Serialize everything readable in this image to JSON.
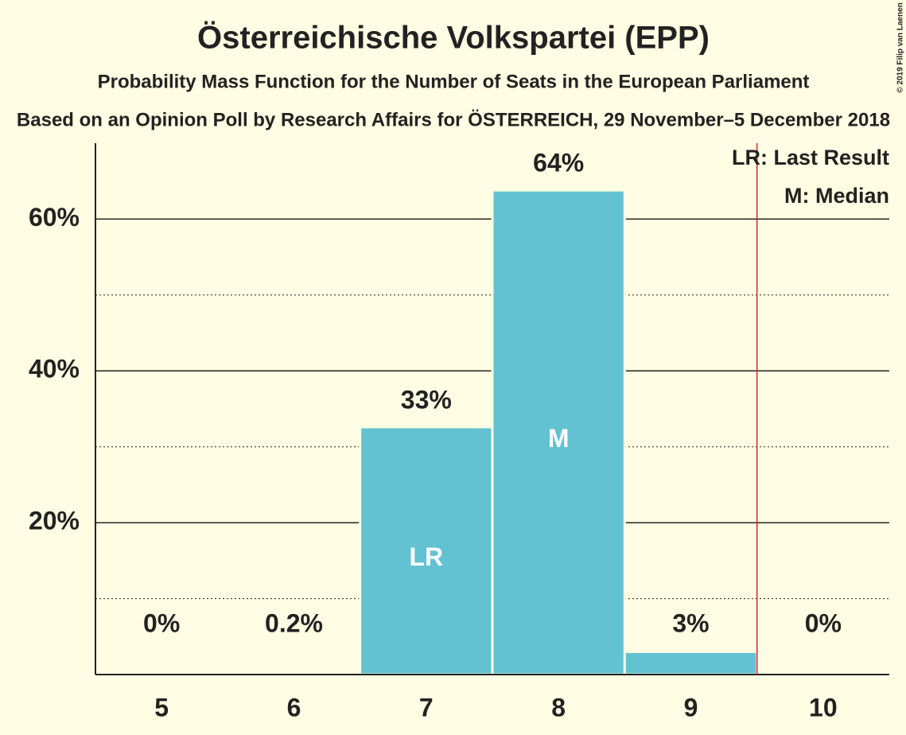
{
  "chart_data": {
    "type": "bar",
    "title": "Österreichische Volkspartei (EPP)",
    "subtitle": "Probability Mass Function for the Number of Seats in the European Parliament",
    "subtitle2": "Based on an Opinion Poll by Research Affairs for ÖSTERREICH, 29 November–5 December 2018",
    "copyright": "© 2019 Filip van Laenen",
    "categories": [
      "5",
      "6",
      "7",
      "8",
      "9",
      "10"
    ],
    "values": [
      0,
      0.2,
      32.6,
      63.8,
      3.0,
      0
    ],
    "value_labels": [
      "0%",
      "0.2%",
      "33%",
      "64%",
      "3%",
      "0%"
    ],
    "color": "#63c2d2",
    "ylim": [
      0,
      70
    ],
    "yticks": [
      {
        "value": 20,
        "label": "20%"
      },
      {
        "value": 40,
        "label": "40%"
      },
      {
        "value": 60,
        "label": "60%"
      }
    ],
    "minor_yticks": [
      10,
      30,
      50
    ],
    "grid": true,
    "bar_annotations": [
      null,
      null,
      "LR",
      "M",
      null,
      null
    ],
    "marker_line": {
      "x": 9.5,
      "color": "#e0202a"
    },
    "legend": [
      "LR: Last Result",
      "M: Median"
    ]
  }
}
